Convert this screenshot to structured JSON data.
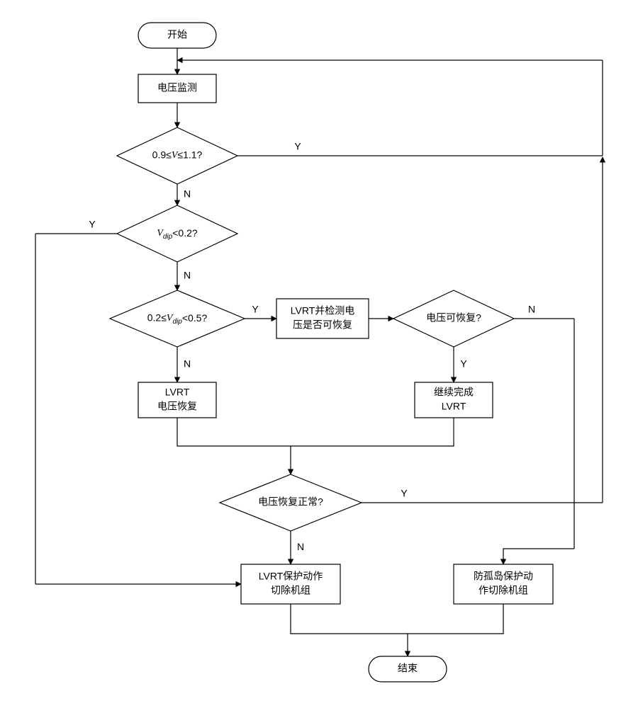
{
  "type": "flowchart",
  "background_color": "#ffffff",
  "stroke_color": "#000000",
  "stroke_width": 1.2,
  "font_size": 14,
  "yes_label": "Y",
  "no_label": "N",
  "nodes": {
    "start": {
      "shape": "terminator",
      "label": "开始"
    },
    "monitor": {
      "shape": "process",
      "label": "电压监测"
    },
    "d_range": {
      "shape": "decision",
      "label": "0.9≤V≤1.1?"
    },
    "d_lt02": {
      "shape": "decision",
      "label": "Vdip<0.2?"
    },
    "d_02_05": {
      "shape": "decision",
      "label": "0.2≤Vdip<0.5?"
    },
    "lvrt_check": {
      "shape": "process",
      "label1": "LVRT并检测电",
      "label2": "压是否可恢复"
    },
    "d_recover": {
      "shape": "decision",
      "label": "电压可恢复?"
    },
    "lvrt_cont": {
      "shape": "process",
      "label1": "继续完成",
      "label2": "LVRT"
    },
    "lvrt_vrec": {
      "shape": "process",
      "label1": "LVRT",
      "label2": "电压恢复"
    },
    "d_normal": {
      "shape": "decision",
      "label": "电压恢复正常?"
    },
    "lvrt_prot": {
      "shape": "process",
      "label1": "LVRT保护动作",
      "label2": "切除机组"
    },
    "island_prot": {
      "shape": "process",
      "label1": "防孤岛保护动",
      "label2": "作切除机组"
    },
    "end": {
      "shape": "terminator",
      "label": "结束"
    }
  }
}
